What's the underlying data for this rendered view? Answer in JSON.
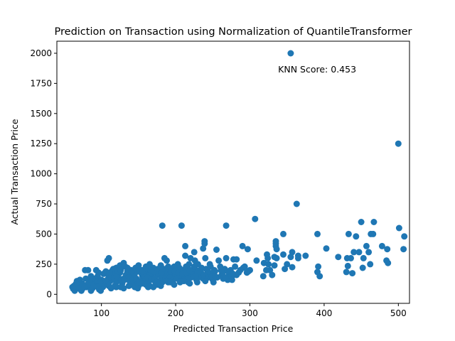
{
  "chart_data": {
    "type": "scatter",
    "title": "Prediction on Transaction using Normalization of QuantileTransformer",
    "xlabel": "Predicted Transaction Price",
    "ylabel": "Actual Transaction Price",
    "xlim": [
      40,
      515
    ],
    "ylim": [
      -75,
      2100
    ],
    "xticks": [
      100,
      200,
      300,
      400,
      500
    ],
    "yticks": [
      0,
      250,
      500,
      750,
      1000,
      1250,
      1500,
      1750,
      2000
    ],
    "annotation": {
      "text": "KNN Score: 0.453",
      "x": 338,
      "y": 1870
    },
    "grid": false,
    "point_color": "#1f77b4",
    "points": [
      [
        355,
        2000
      ],
      [
        500,
        1250
      ],
      [
        363,
        750
      ],
      [
        307,
        625
      ],
      [
        182,
        570
      ],
      [
        208,
        570
      ],
      [
        268,
        570
      ],
      [
        450,
        600
      ],
      [
        467,
        600
      ],
      [
        501,
        550
      ],
      [
        508,
        480
      ],
      [
        507,
        375
      ],
      [
        345,
        500
      ],
      [
        391,
        500
      ],
      [
        433,
        500
      ],
      [
        463,
        500
      ],
      [
        466,
        500
      ],
      [
        443,
        480
      ],
      [
        457,
        400
      ],
      [
        478,
        400
      ],
      [
        485,
        375
      ],
      [
        440,
        350
      ],
      [
        447,
        350
      ],
      [
        460,
        350
      ],
      [
        419,
        310
      ],
      [
        431,
        300
      ],
      [
        436,
        300
      ],
      [
        453,
        300
      ],
      [
        462,
        250
      ],
      [
        486,
        260
      ],
      [
        484,
        280
      ],
      [
        392,
        230
      ],
      [
        391,
        185
      ],
      [
        394,
        150
      ],
      [
        430,
        185
      ],
      [
        438,
        175
      ],
      [
        452,
        220
      ],
      [
        432,
        235
      ],
      [
        403,
        380
      ],
      [
        375,
        320
      ],
      [
        365,
        320
      ],
      [
        365,
        300
      ],
      [
        357,
        350
      ],
      [
        355,
        310
      ],
      [
        350,
        250
      ],
      [
        357,
        225
      ],
      [
        347,
        210
      ],
      [
        345,
        330
      ],
      [
        336,
        375
      ],
      [
        336,
        300
      ],
      [
        323,
        330
      ],
      [
        324,
        300
      ],
      [
        325,
        250
      ],
      [
        319,
        260
      ],
      [
        333,
        310
      ],
      [
        333,
        240
      ],
      [
        330,
        160
      ],
      [
        327,
        200
      ],
      [
        322,
        200
      ],
      [
        318,
        150
      ],
      [
        309,
        280
      ],
      [
        296,
        180
      ],
      [
        335,
        400
      ],
      [
        335,
        420
      ],
      [
        335,
        440
      ],
      [
        297,
        375
      ],
      [
        290,
        400
      ],
      [
        278,
        290
      ],
      [
        274,
        200
      ],
      [
        276,
        150
      ],
      [
        270,
        120
      ],
      [
        282,
        160
      ],
      [
        282,
        290
      ],
      [
        268,
        300
      ],
      [
        255,
        370
      ],
      [
        258,
        280
      ],
      [
        243,
        190
      ],
      [
        239,
        420
      ],
      [
        239,
        440
      ],
      [
        237,
        380
      ],
      [
        240,
        300
      ],
      [
        246,
        250
      ],
      [
        230,
        250
      ],
      [
        225,
        350
      ],
      [
        220,
        300
      ],
      [
        226,
        280
      ],
      [
        213,
        400
      ],
      [
        213,
        320
      ],
      [
        218,
        250
      ],
      [
        222,
        200
      ],
      [
        215,
        150
      ],
      [
        210,
        200
      ],
      [
        209,
        120
      ],
      [
        217,
        100
      ],
      [
        252,
        200
      ],
      [
        261,
        200
      ],
      [
        248,
        160
      ],
      [
        262,
        160
      ],
      [
        233,
        200
      ],
      [
        235,
        150
      ],
      [
        250,
        120
      ],
      [
        228,
        120
      ],
      [
        203,
        250
      ],
      [
        198,
        230
      ],
      [
        192,
        200
      ],
      [
        188,
        280
      ],
      [
        185,
        300
      ],
      [
        195,
        150
      ],
      [
        190,
        100
      ],
      [
        180,
        120
      ],
      [
        175,
        200
      ],
      [
        170,
        180
      ],
      [
        165,
        250
      ],
      [
        160,
        230
      ],
      [
        155,
        150
      ],
      [
        150,
        200
      ],
      [
        145,
        100
      ],
      [
        140,
        160
      ],
      [
        135,
        220
      ],
      [
        130,
        130
      ],
      [
        125,
        180
      ],
      [
        120,
        100
      ],
      [
        115,
        200
      ],
      [
        110,
        150
      ],
      [
        108,
        280
      ],
      [
        110,
        300
      ],
      [
        105,
        80
      ],
      [
        100,
        120
      ],
      [
        95,
        150
      ],
      [
        90,
        90
      ],
      [
        85,
        120
      ],
      [
        80,
        60
      ],
      [
        78,
        200
      ],
      [
        82,
        200
      ],
      [
        75,
        50
      ],
      [
        70,
        100
      ],
      [
        65,
        60
      ],
      [
        62,
        45
      ],
      [
        61,
        60
      ],
      [
        64,
        30
      ],
      [
        68,
        80
      ],
      [
        72,
        40
      ],
      [
        76,
        70
      ],
      [
        83,
        90
      ],
      [
        88,
        50
      ],
      [
        92,
        70
      ],
      [
        97,
        40
      ],
      [
        102,
        60
      ],
      [
        107,
        90
      ],
      [
        112,
        110
      ],
      [
        118,
        70
      ],
      [
        123,
        140
      ],
      [
        128,
        90
      ],
      [
        133,
        160
      ],
      [
        138,
        110
      ],
      [
        143,
        140
      ],
      [
        148,
        90
      ],
      [
        153,
        180
      ],
      [
        158,
        120
      ],
      [
        163,
        100
      ],
      [
        168,
        140
      ],
      [
        173,
        90
      ],
      [
        178,
        160
      ],
      [
        183,
        140
      ],
      [
        187,
        170
      ],
      [
        191,
        180
      ],
      [
        196,
        200
      ],
      [
        200,
        170
      ],
      [
        205,
        220
      ],
      [
        210,
        190
      ],
      [
        214,
        230
      ],
      [
        218,
        170
      ],
      [
        222,
        180
      ],
      [
        226,
        210
      ],
      [
        230,
        190
      ],
      [
        235,
        220
      ],
      [
        241,
        210
      ],
      [
        247,
        230
      ],
      [
        253,
        190
      ],
      [
        260,
        230
      ],
      [
        266,
        210
      ],
      [
        272,
        160
      ],
      [
        280,
        230
      ],
      [
        287,
        200
      ],
      [
        293,
        230
      ],
      [
        300,
        200
      ],
      [
        120,
        220
      ],
      [
        125,
        240
      ],
      [
        130,
        260
      ],
      [
        140,
        200
      ],
      [
        150,
        240
      ],
      [
        160,
        180
      ],
      [
        170,
        220
      ],
      [
        180,
        240
      ],
      [
        190,
        230
      ],
      [
        200,
        200
      ],
      [
        115,
        170
      ],
      [
        135,
        190
      ],
      [
        145,
        170
      ],
      [
        155,
        200
      ],
      [
        165,
        160
      ],
      [
        175,
        170
      ],
      [
        185,
        190
      ],
      [
        195,
        210
      ],
      [
        205,
        160
      ],
      [
        215,
        210
      ],
      [
        225,
        230
      ],
      [
        245,
        180
      ],
      [
        100,
        90
      ],
      [
        104,
        110
      ],
      [
        109,
        130
      ],
      [
        113,
        140
      ],
      [
        117,
        130
      ],
      [
        121,
        150
      ],
      [
        127,
        110
      ],
      [
        131,
        120
      ],
      [
        137,
        140
      ],
      [
        142,
        120
      ],
      [
        147,
        130
      ],
      [
        152,
        110
      ],
      [
        157,
        160
      ],
      [
        162,
        140
      ],
      [
        167,
        120
      ],
      [
        172,
        130
      ],
      [
        177,
        110
      ],
      [
        182,
        100
      ],
      [
        186,
        130
      ],
      [
        192,
        140
      ],
      [
        197,
        120
      ],
      [
        202,
        130
      ],
      [
        207,
        150
      ],
      [
        212,
        140
      ],
      [
        90,
        130
      ],
      [
        94,
        110
      ],
      [
        98,
        100
      ],
      [
        86,
        150
      ],
      [
        84,
        110
      ],
      [
        79,
        130
      ],
      [
        74,
        90
      ],
      [
        71,
        120
      ],
      [
        67,
        110
      ],
      [
        66,
        90
      ],
      [
        63,
        70
      ],
      [
        69,
        50
      ],
      [
        93,
        200
      ],
      [
        96,
        180
      ],
      [
        103,
        170
      ],
      [
        106,
        190
      ],
      [
        111,
        180
      ],
      [
        116,
        210
      ],
      [
        122,
        190
      ],
      [
        126,
        200
      ],
      [
        132,
        230
      ],
      [
        136,
        210
      ],
      [
        141,
        190
      ],
      [
        146,
        220
      ],
      [
        151,
        200
      ],
      [
        156,
        190
      ],
      [
        161,
        210
      ],
      [
        166,
        200
      ],
      [
        171,
        190
      ],
      [
        176,
        210
      ],
      [
        181,
        180
      ],
      [
        184,
        210
      ],
      [
        189,
        220
      ],
      [
        194,
        190
      ],
      [
        199,
        190
      ],
      [
        204,
        180
      ],
      [
        209,
        170
      ],
      [
        214,
        180
      ],
      [
        219,
        200
      ],
      [
        224,
        160
      ],
      [
        229,
        170
      ],
      [
        234,
        180
      ],
      [
        238,
        160
      ],
      [
        244,
        140
      ],
      [
        249,
        150
      ],
      [
        256,
        140
      ],
      [
        263,
        180
      ],
      [
        270,
        190
      ],
      [
        285,
        180
      ],
      [
        277,
        170
      ],
      [
        291,
        220
      ],
      [
        298,
        190
      ],
      [
        276,
        120
      ],
      [
        264,
        130
      ],
      [
        253,
        150
      ],
      [
        237,
        130
      ],
      [
        231,
        140
      ],
      [
        227,
        150
      ],
      [
        221,
        140
      ],
      [
        216,
        130
      ],
      [
        140,
        80
      ],
      [
        145,
        60
      ],
      [
        150,
        70
      ],
      [
        155,
        90
      ],
      [
        160,
        80
      ],
      [
        165,
        70
      ],
      [
        170,
        60
      ],
      [
        175,
        80
      ],
      [
        180,
        70
      ],
      [
        130,
        50
      ],
      [
        120,
        60
      ],
      [
        110,
        70
      ],
      [
        95,
        60
      ],
      [
        87,
        70
      ],
      [
        81,
        80
      ],
      [
        77,
        60
      ],
      [
        73,
        30
      ],
      [
        86,
        30
      ],
      [
        99,
        30
      ],
      [
        113,
        50
      ],
      [
        126,
        60
      ],
      [
        137,
        70
      ],
      [
        149,
        50
      ],
      [
        163,
        60
      ],
      [
        174,
        100
      ],
      [
        179,
        90
      ],
      [
        188,
        110
      ],
      [
        193,
        100
      ],
      [
        198,
        80
      ],
      [
        206,
        100
      ],
      [
        211,
        110
      ],
      [
        219,
        90
      ],
      [
        229,
        100
      ],
      [
        240,
        110
      ],
      [
        251,
        100
      ],
      [
        267,
        140
      ]
    ]
  }
}
